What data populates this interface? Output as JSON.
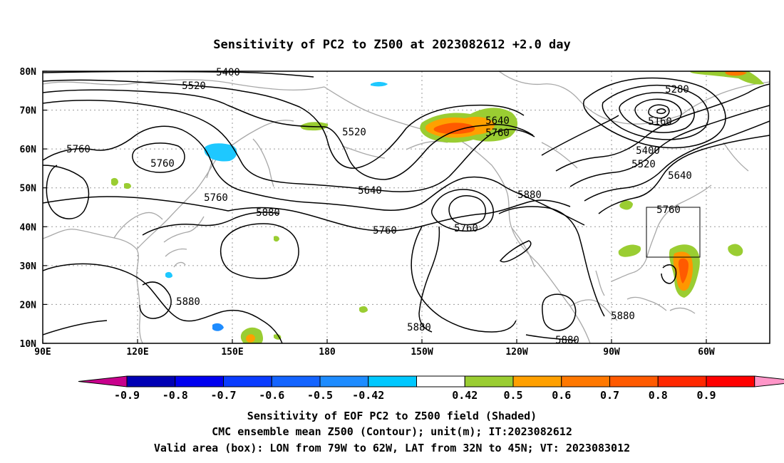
{
  "title": "Sensitivity of PC2 to Z500 at 2023082612 +2.0 day",
  "lat_labels": [
    "80N",
    "70N",
    "60N",
    "50N",
    "40N",
    "30N",
    "20N",
    "10N"
  ],
  "lon_labels": [
    "90E",
    "120E",
    "150E",
    "180",
    "150W",
    "120W",
    "90W",
    "60W"
  ],
  "contour_labels": [
    "5400",
    "5520",
    "5760",
    "5760",
    "5760",
    "5880",
    "5880",
    "5520",
    "5640",
    "5760",
    "5760",
    "5640",
    "5760",
    "5880",
    "5880",
    "5880",
    "5880",
    "5280",
    "5160",
    "5400",
    "5520",
    "5640",
    "5760"
  ],
  "colorbar": {
    "labels": [
      "-0.9",
      "-0.8",
      "-0.7",
      "-0.6",
      "-0.5",
      "-0.42",
      "0.42",
      "0.5",
      "0.6",
      "0.7",
      "0.8",
      "0.9"
    ],
    "colors": [
      "#c8008c",
      "#0000b4",
      "#0000f0",
      "#0a3cff",
      "#1464ff",
      "#1e8cff",
      "#00c8ff",
      "#ffffff",
      "#9acd32",
      "#ffa000",
      "#ff7800",
      "#ff5a00",
      "#ff2800",
      "#ff0000",
      "#ff96c8"
    ]
  },
  "valid_area": {
    "lon_from": "79W",
    "lon_to": "62W",
    "lat_from": "32N",
    "lat_to": "45N"
  },
  "footer": {
    "line1": "Sensitivity of EOF PC2 to Z500 field (Shaded)",
    "line2": "CMC ensemble mean Z500 (Contour); unit(m); IT:2023082612",
    "line3": "Valid area (box): LON from 79W to 62W, LAT from 32N to 45N; VT: 2023083012"
  }
}
